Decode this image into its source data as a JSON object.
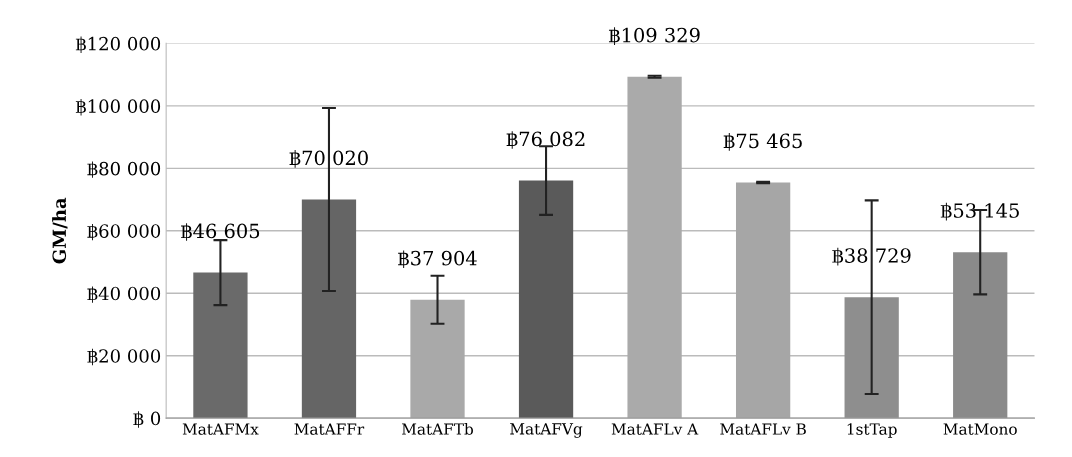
{
  "chart_data": {
    "type": "bar",
    "ylabel": "GM/ha",
    "categories": [
      "MatAFMx",
      "MatAFFr",
      "MatAFTb",
      "MatAFVg",
      "MatAFLv A",
      "MatAFLv B",
      "1stTap",
      "MatMono"
    ],
    "values": [
      46605,
      70020,
      37904,
      76082,
      109329,
      75465,
      38729,
      53145
    ],
    "errors": [
      10400,
      29300,
      7700,
      11000,
      300,
      200,
      31000,
      13500
    ],
    "colors": [
      "#6a6a6a",
      "#656565",
      "#a9a9a9",
      "#5a5a5a",
      "#aaaaaa",
      "#a6a6a6",
      "#8e8e8e",
      "#8a8a8a"
    ],
    "value_labels": [
      "฿46 605",
      "฿70 020",
      "฿37 904",
      "฿76 082",
      "฿109 329",
      "฿75 465",
      "฿38 729",
      "฿53 145"
    ],
    "ylim": [
      0,
      120000
    ],
    "yticks": [
      {
        "value": 0,
        "label": "฿ 0"
      },
      {
        "value": 20000,
        "label": "฿20 000"
      },
      {
        "value": 40000,
        "label": "฿40 000"
      },
      {
        "value": 60000,
        "label": "฿60 000"
      },
      {
        "value": 80000,
        "label": "฿80 000"
      },
      {
        "value": 100000,
        "label": "฿100 000"
      },
      {
        "value": 120000,
        "label": "฿120 000"
      }
    ],
    "grid": "y"
  }
}
